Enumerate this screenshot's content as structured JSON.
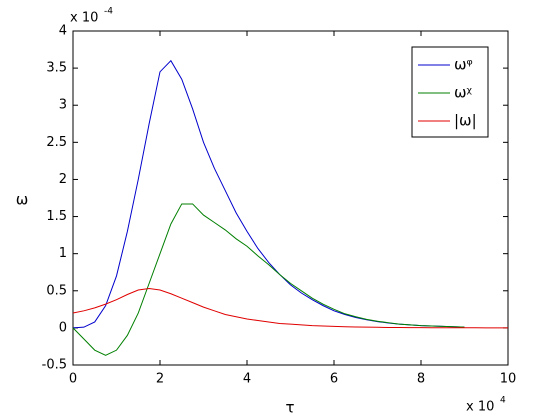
{
  "chart_data": {
    "type": "line",
    "xlabel": "τ",
    "ylabel": "ω",
    "x_multiplier": {
      "base": "x 10",
      "exponent": "4"
    },
    "y_multiplier": {
      "base": "x 10",
      "exponent": "-4"
    },
    "x": [
      0,
      0.25,
      0.5,
      0.75,
      1,
      1.25,
      1.5,
      1.75,
      2,
      2.25,
      2.5,
      2.75,
      3,
      3.25,
      3.5,
      3.75,
      4,
      4.25,
      4.5,
      4.75,
      5,
      5.25,
      5.5,
      5.75,
      6,
      6.25,
      6.5,
      6.75,
      7,
      7.25,
      7.5,
      7.75,
      8,
      8.25,
      8.5,
      8.75,
      9,
      9.25,
      9.5,
      9.75,
      10
    ],
    "series": [
      {
        "name": "ωᵠ",
        "color": "#0000cc",
        "values": [
          0,
          0.01,
          0.08,
          0.3,
          0.7,
          1.3,
          2.0,
          2.75,
          3.45,
          3.6,
          3.35,
          2.95,
          2.5,
          2.15,
          1.85,
          1.55,
          1.3,
          1.07,
          0.88,
          0.72,
          0.58,
          0.47,
          0.38,
          0.3,
          0.23,
          0.18,
          0.14,
          0.11,
          0.085,
          0.065,
          0.05,
          0.04,
          0.03,
          0.025,
          0.02,
          0.015,
          0.01,
          null,
          null,
          null,
          null
        ]
      },
      {
        "name": "ωᵡ",
        "color": "#007f00",
        "values": [
          0,
          -0.15,
          -0.3,
          -0.37,
          -0.3,
          -0.1,
          0.2,
          0.6,
          1.0,
          1.4,
          1.67,
          1.67,
          1.52,
          1.42,
          1.32,
          1.2,
          1.1,
          0.97,
          0.85,
          0.72,
          0.6,
          0.5,
          0.4,
          0.32,
          0.25,
          0.19,
          0.15,
          0.115,
          0.09,
          0.07,
          0.05,
          0.04,
          0.03,
          0.025,
          0.02,
          0.015,
          0.01,
          null,
          null,
          null,
          null
        ]
      },
      {
        "name": "|ω|",
        "color": "#e00000",
        "values": [
          0.2,
          0.23,
          0.27,
          0.32,
          0.38,
          0.45,
          0.51,
          0.53,
          0.51,
          0.46,
          0.4,
          0.34,
          0.28,
          0.23,
          0.18,
          0.15,
          0.12,
          0.1,
          0.08,
          0.06,
          0.05,
          0.04,
          0.03,
          0.025,
          0.02,
          0.015,
          0.012,
          0.01,
          0.008,
          0.006,
          0.005,
          0.004,
          0.003,
          0.002,
          0.002,
          0.001,
          0.001,
          0.001,
          0.0005,
          0.0003,
          0.0002
        ]
      }
    ],
    "xlim": [
      0,
      10
    ],
    "xticks": [
      0,
      2,
      4,
      6,
      8,
      10
    ],
    "ylim": [
      -0.5,
      4
    ],
    "yticks": [
      -0.5,
      0,
      0.5,
      1,
      1.5,
      2,
      2.5,
      3,
      3.5,
      4
    ],
    "legend": "top-right",
    "grid": false
  }
}
